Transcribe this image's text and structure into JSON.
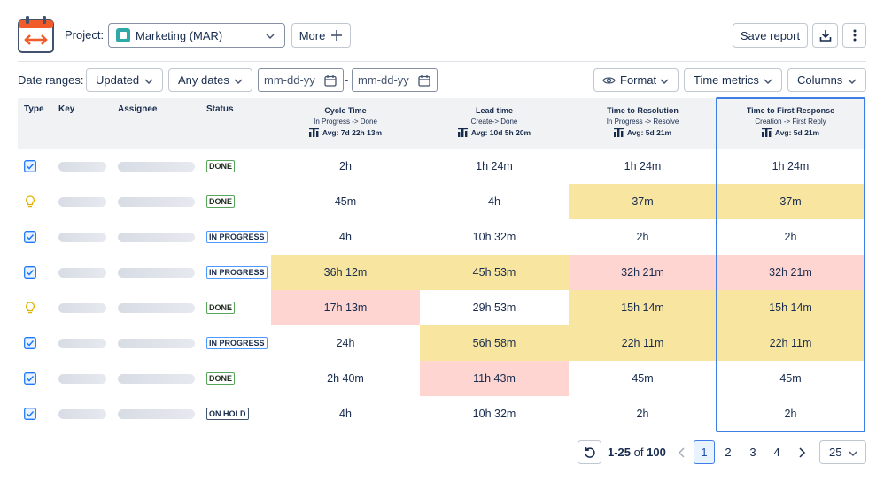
{
  "header": {
    "project_label": "Project:",
    "project_value": "Marketing (MAR)",
    "more_label": "More",
    "save_label": "Save report"
  },
  "filters": {
    "date_ranges_label": "Date ranges:",
    "updated_label": "Updated",
    "any_dates_label": "Any dates",
    "from_placeholder": "mm-dd-yy",
    "to_placeholder": "mm-dd-yy",
    "dash": "-",
    "format_label": "Format",
    "time_metrics_label": "Time metrics",
    "columns_label": "Columns"
  },
  "table": {
    "headers": {
      "type": "Type",
      "key": "Key",
      "assignee": "Assignee",
      "status": "Status"
    },
    "metrics": [
      {
        "title": "Cycle Time",
        "sub": "In Progress -> Done",
        "avg": "Avg: 7d 22h 13m"
      },
      {
        "title": "Lead time",
        "sub": "Create-> Done",
        "avg": "Avg: 10d 5h 20m"
      },
      {
        "title": "Time to Resolution",
        "sub": "In Progress -> Resolve",
        "avg": "Avg: 5d 21m"
      },
      {
        "title": "Time to First Response",
        "sub": "Creation -> First Reply",
        "avg": "Avg: 5d 21m"
      }
    ],
    "rows": [
      {
        "type": "task",
        "status": "DONE",
        "values": [
          "2h",
          "1h 24m",
          "1h 24m",
          "1h 24m"
        ],
        "colors": [
          "",
          "",
          "",
          ""
        ]
      },
      {
        "type": "idea",
        "status": "DONE",
        "values": [
          "45m",
          "4h",
          "37m",
          "37m"
        ],
        "colors": [
          "",
          "",
          "yellow",
          "yellow"
        ]
      },
      {
        "type": "task",
        "status": "IN PROGRESS",
        "values": [
          "4h",
          "10h 32m",
          "2h",
          "2h"
        ],
        "colors": [
          "",
          "",
          "",
          ""
        ]
      },
      {
        "type": "task",
        "status": "IN PROGRESS",
        "values": [
          "36h 12m",
          "45h 53m",
          "32h 21m",
          "32h 21m"
        ],
        "colors": [
          "yellow",
          "yellow",
          "red",
          "red"
        ]
      },
      {
        "type": "idea",
        "status": "DONE",
        "values": [
          "17h 13m",
          "29h 53m",
          "15h 14m",
          "15h 14m"
        ],
        "colors": [
          "red",
          "",
          "yellow",
          "yellow"
        ]
      },
      {
        "type": "task",
        "status": "IN PROGRESS",
        "values": [
          "24h",
          "56h 58m",
          "22h 11m",
          "22h 11m"
        ],
        "colors": [
          "",
          "yellow",
          "yellow",
          "yellow"
        ]
      },
      {
        "type": "task",
        "status": "DONE",
        "values": [
          "2h 40m",
          "11h 43m",
          "45m",
          "45m"
        ],
        "colors": [
          "",
          "red",
          "",
          ""
        ]
      },
      {
        "type": "task",
        "status": "ON HOLD",
        "values": [
          "4h",
          "10h 32m",
          "2h",
          "2h"
        ],
        "colors": [
          "",
          "",
          "",
          ""
        ]
      }
    ],
    "palette": {
      "yellow": "#f8e6a0",
      "red": "#ffd5d2",
      "task_icon": "#1d7afc",
      "idea_icon": "#e2b203"
    }
  },
  "pagination": {
    "range_bold": "1-25",
    "range_rest": " of ",
    "total": "100",
    "pages": [
      "1",
      "2",
      "3",
      "4"
    ],
    "active_page": "1",
    "per_page": "25"
  }
}
